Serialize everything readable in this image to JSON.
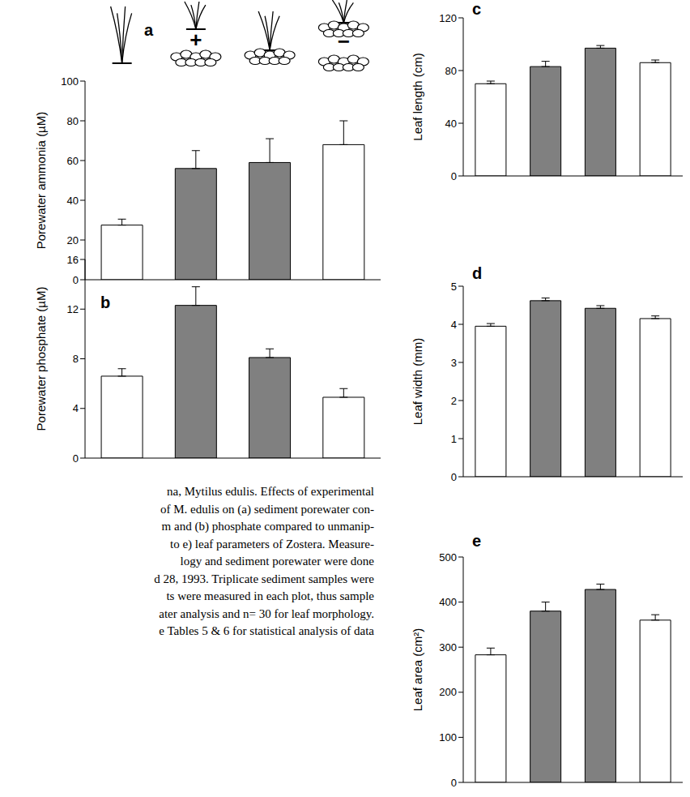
{
  "chart_data": [
    {
      "type": "bar",
      "title": "a",
      "categories": [
        null,
        null,
        null,
        null
      ],
      "values": [
        27.5,
        56,
        59,
        68
      ],
      "errors": [
        3,
        9,
        12,
        12
      ],
      "colors": [
        "#ffffff",
        "#808080",
        "#808080",
        "#ffffff"
      ],
      "ylabel": "Porewater ammonia (µM)",
      "ylim": [
        0,
        100
      ],
      "yticks": [
        0,
        20,
        40,
        60,
        80,
        100
      ],
      "grid": false,
      "tick_labels": "y",
      "annotations": [
        {
          "text": "+",
          "category": 1
        },
        {
          "text": "−",
          "category": 3
        }
      ]
    },
    {
      "type": "bar",
      "title": "b",
      "categories": [
        null,
        null,
        null,
        null
      ],
      "values": [
        6.6,
        12.3,
        8.1,
        4.9
      ],
      "errors": [
        0.6,
        1.5,
        0.7,
        0.7
      ],
      "colors": [
        "#ffffff",
        "#808080",
        "#808080",
        "#ffffff"
      ],
      "ylabel": "Porewater phosphate (µM)",
      "ylim": [
        0,
        16
      ],
      "yticks": [
        0,
        4,
        8,
        12,
        16
      ],
      "grid": false,
      "tick_labels": "y"
    },
    {
      "type": "bar",
      "title": "c",
      "categories": [
        null,
        null,
        null,
        null
      ],
      "values": [
        70,
        83,
        97,
        86
      ],
      "errors": [
        2,
        4,
        2,
        2
      ],
      "colors": [
        "#ffffff",
        "#808080",
        "#808080",
        "#ffffff"
      ],
      "ylabel": "Leaf length (cm)",
      "ylim": [
        0,
        120
      ],
      "yticks": [
        0,
        40,
        80,
        120
      ],
      "grid": false,
      "tick_labels": "y"
    },
    {
      "type": "bar",
      "title": "d",
      "categories": [
        null,
        null,
        null,
        null
      ],
      "values": [
        3.95,
        4.62,
        4.42,
        4.15
      ],
      "errors": [
        0.07,
        0.07,
        0.07,
        0.07
      ],
      "colors": [
        "#ffffff",
        "#808080",
        "#808080",
        "#ffffff"
      ],
      "ylabel": "Leaf width (mm)",
      "ylim": [
        0,
        5
      ],
      "yticks": [
        0,
        1,
        2,
        3,
        4,
        5
      ],
      "grid": false,
      "tick_labels": "y"
    },
    {
      "type": "bar",
      "title": "e",
      "categories": [
        null,
        null,
        null,
        null
      ],
      "values": [
        283,
        380,
        428,
        360
      ],
      "errors": [
        15,
        20,
        12,
        12
      ],
      "colors": [
        "#ffffff",
        "#808080",
        "#808080",
        "#ffffff"
      ],
      "ylabel": "Leaf area (cm²)",
      "ylim": [
        0,
        500
      ],
      "yticks": [
        0,
        100,
        200,
        300,
        400,
        500
      ],
      "grid": false,
      "tick_labels": "y"
    }
  ],
  "caption": {
    "lines": [
      "na, Mytilus edulis. Effects of experimental",
      "of M. edulis on (a) sediment porewater con-",
      "m and (b) phosphate compared to unmanip-",
      "to e) leaf parameters of Zostera. Measure-",
      "logy and sediment porewater were done",
      "d 28, 1993. Triplicate sediment samples were",
      "ts were measured in each plot, thus sample",
      "ater analysis and n= 30 for leaf morphology.",
      "e Tables 5 & 6 for statistical analysis of data"
    ]
  }
}
